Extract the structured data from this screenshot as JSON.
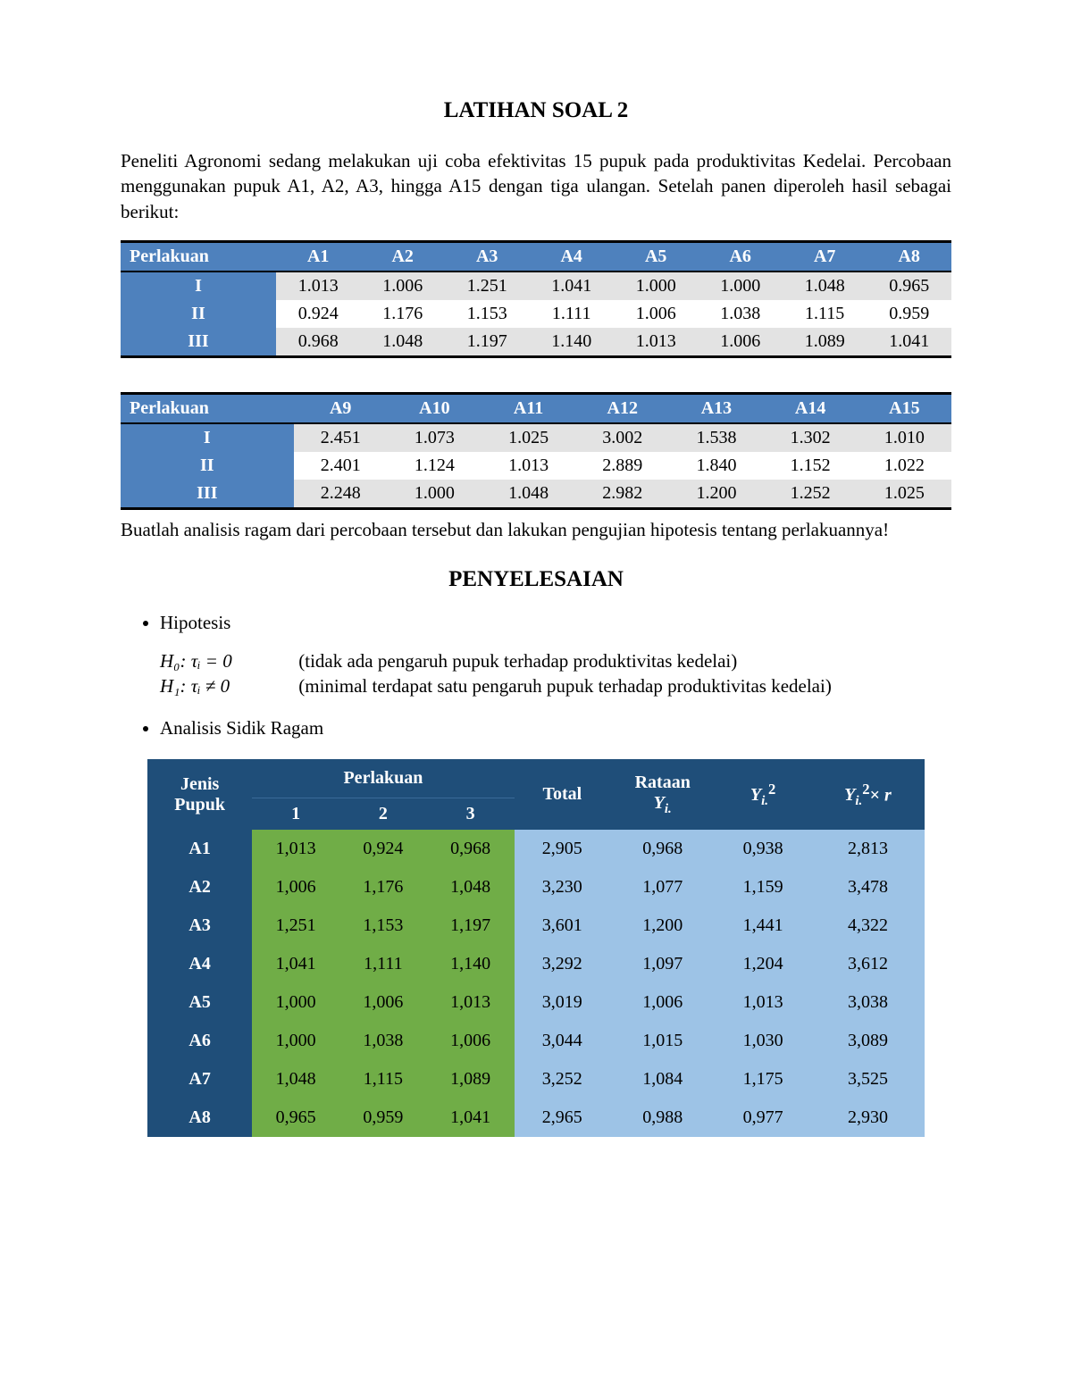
{
  "title": "LATIHAN SOAL 2",
  "intro": "Peneliti Agronomi sedang melakukan uji coba efektivitas 15 pupuk pada produktivitas Kedelai. Percobaan menggunakan pupuk A1, A2, A3, hingga A15 dengan tiga ulangan. Setelah panen diperoleh hasil sebagai berikut:",
  "table1": {
    "type": "table",
    "header_bg": "#4e81bd",
    "header_color": "#ffffff",
    "zebra_bg": "#e3e3e3",
    "border_color": "#000000",
    "col0": "Perlakuan",
    "cols": [
      "A1",
      "A2",
      "A3",
      "A4",
      "A5",
      "A6",
      "A7",
      "A8"
    ],
    "row_labels": [
      "I",
      "II",
      "III"
    ],
    "rows": [
      [
        "1.013",
        "1.006",
        "1.251",
        "1.041",
        "1.000",
        "1.000",
        "1.048",
        "0.965"
      ],
      [
        "0.924",
        "1.176",
        "1.153",
        "1.111",
        "1.006",
        "1.038",
        "1.115",
        "0.959"
      ],
      [
        "0.968",
        "1.048",
        "1.197",
        "1.140",
        "1.013",
        "1.006",
        "1.089",
        "1.041"
      ]
    ]
  },
  "table2": {
    "type": "table",
    "col0": "Perlakuan",
    "cols": [
      "A9",
      "A10",
      "A11",
      "A12",
      "A13",
      "A14",
      "A15"
    ],
    "row_labels": [
      "I",
      "II",
      "III"
    ],
    "rows": [
      [
        "2.451",
        "1.073",
        "1.025",
        "3.002",
        "1.538",
        "1.302",
        "1.010"
      ],
      [
        "2.401",
        "1.124",
        "1.013",
        "2.889",
        "1.840",
        "1.152",
        "1.022"
      ],
      [
        "2.248",
        "1.000",
        "1.048",
        "2.982",
        "1.200",
        "1.252",
        "1.025"
      ]
    ]
  },
  "instruction": "Buatlah analisis ragam dari percobaan tersebut dan lakukan pengujian hipotesis tentang perlakuannya!",
  "solution_title": "PENYELESAIAN",
  "bullets": {
    "hipotesis": "Hipotesis",
    "h0_math": "H₀: τᵢ = 0",
    "h0_text": "(tidak ada pengaruh pupuk terhadap produktivitas kedelai)",
    "h1_math": "H₁: τᵢ ≠ 0",
    "h1_text": "(minimal terdapat satu pengaruh pupuk terhadap produktivitas kedelai)",
    "analisis": "Analisis Sidik Ragam"
  },
  "anova": {
    "type": "table",
    "header_bg": "#1f4e79",
    "green_bg": "#70ad47",
    "blue_bg": "#9dc3e6",
    "col_jenis": "Jenis Pupuk",
    "col_perlakuan": "Perlakuan",
    "sub_cols": [
      "1",
      "2",
      "3"
    ],
    "col_total": "Total",
    "col_rataan_html": "Rataan<br><span class='math-i'>Y<sub>i.</sub></span>",
    "col_yi2_html": "<span class='math-i'>Y<sub>i.</sub></span><sup>2</sup>",
    "col_yi2r_html": "<span class='math-i'>Y<sub>i.</sub></span><sup>2</sup>× <span class='math-i'>r</span>",
    "row_labels": [
      "A1",
      "A2",
      "A3",
      "A4",
      "A5",
      "A6",
      "A7",
      "A8"
    ],
    "rows": [
      [
        "1,013",
        "0,924",
        "0,968",
        "2,905",
        "0,968",
        "0,938",
        "2,813"
      ],
      [
        "1,006",
        "1,176",
        "1,048",
        "3,230",
        "1,077",
        "1,159",
        "3,478"
      ],
      [
        "1,251",
        "1,153",
        "1,197",
        "3,601",
        "1,200",
        "1,441",
        "4,322"
      ],
      [
        "1,041",
        "1,111",
        "1,140",
        "3,292",
        "1,097",
        "1,204",
        "3,612"
      ],
      [
        "1,000",
        "1,006",
        "1,013",
        "3,019",
        "1,006",
        "1,013",
        "3,038"
      ],
      [
        "1,000",
        "1,038",
        "1,006",
        "3,044",
        "1,015",
        "1,030",
        "3,089"
      ],
      [
        "1,048",
        "1,115",
        "1,089",
        "3,252",
        "1,084",
        "1,175",
        "3,525"
      ],
      [
        "0,965",
        "0,959",
        "1,041",
        "2,965",
        "0,988",
        "0,977",
        "2,930"
      ]
    ]
  }
}
